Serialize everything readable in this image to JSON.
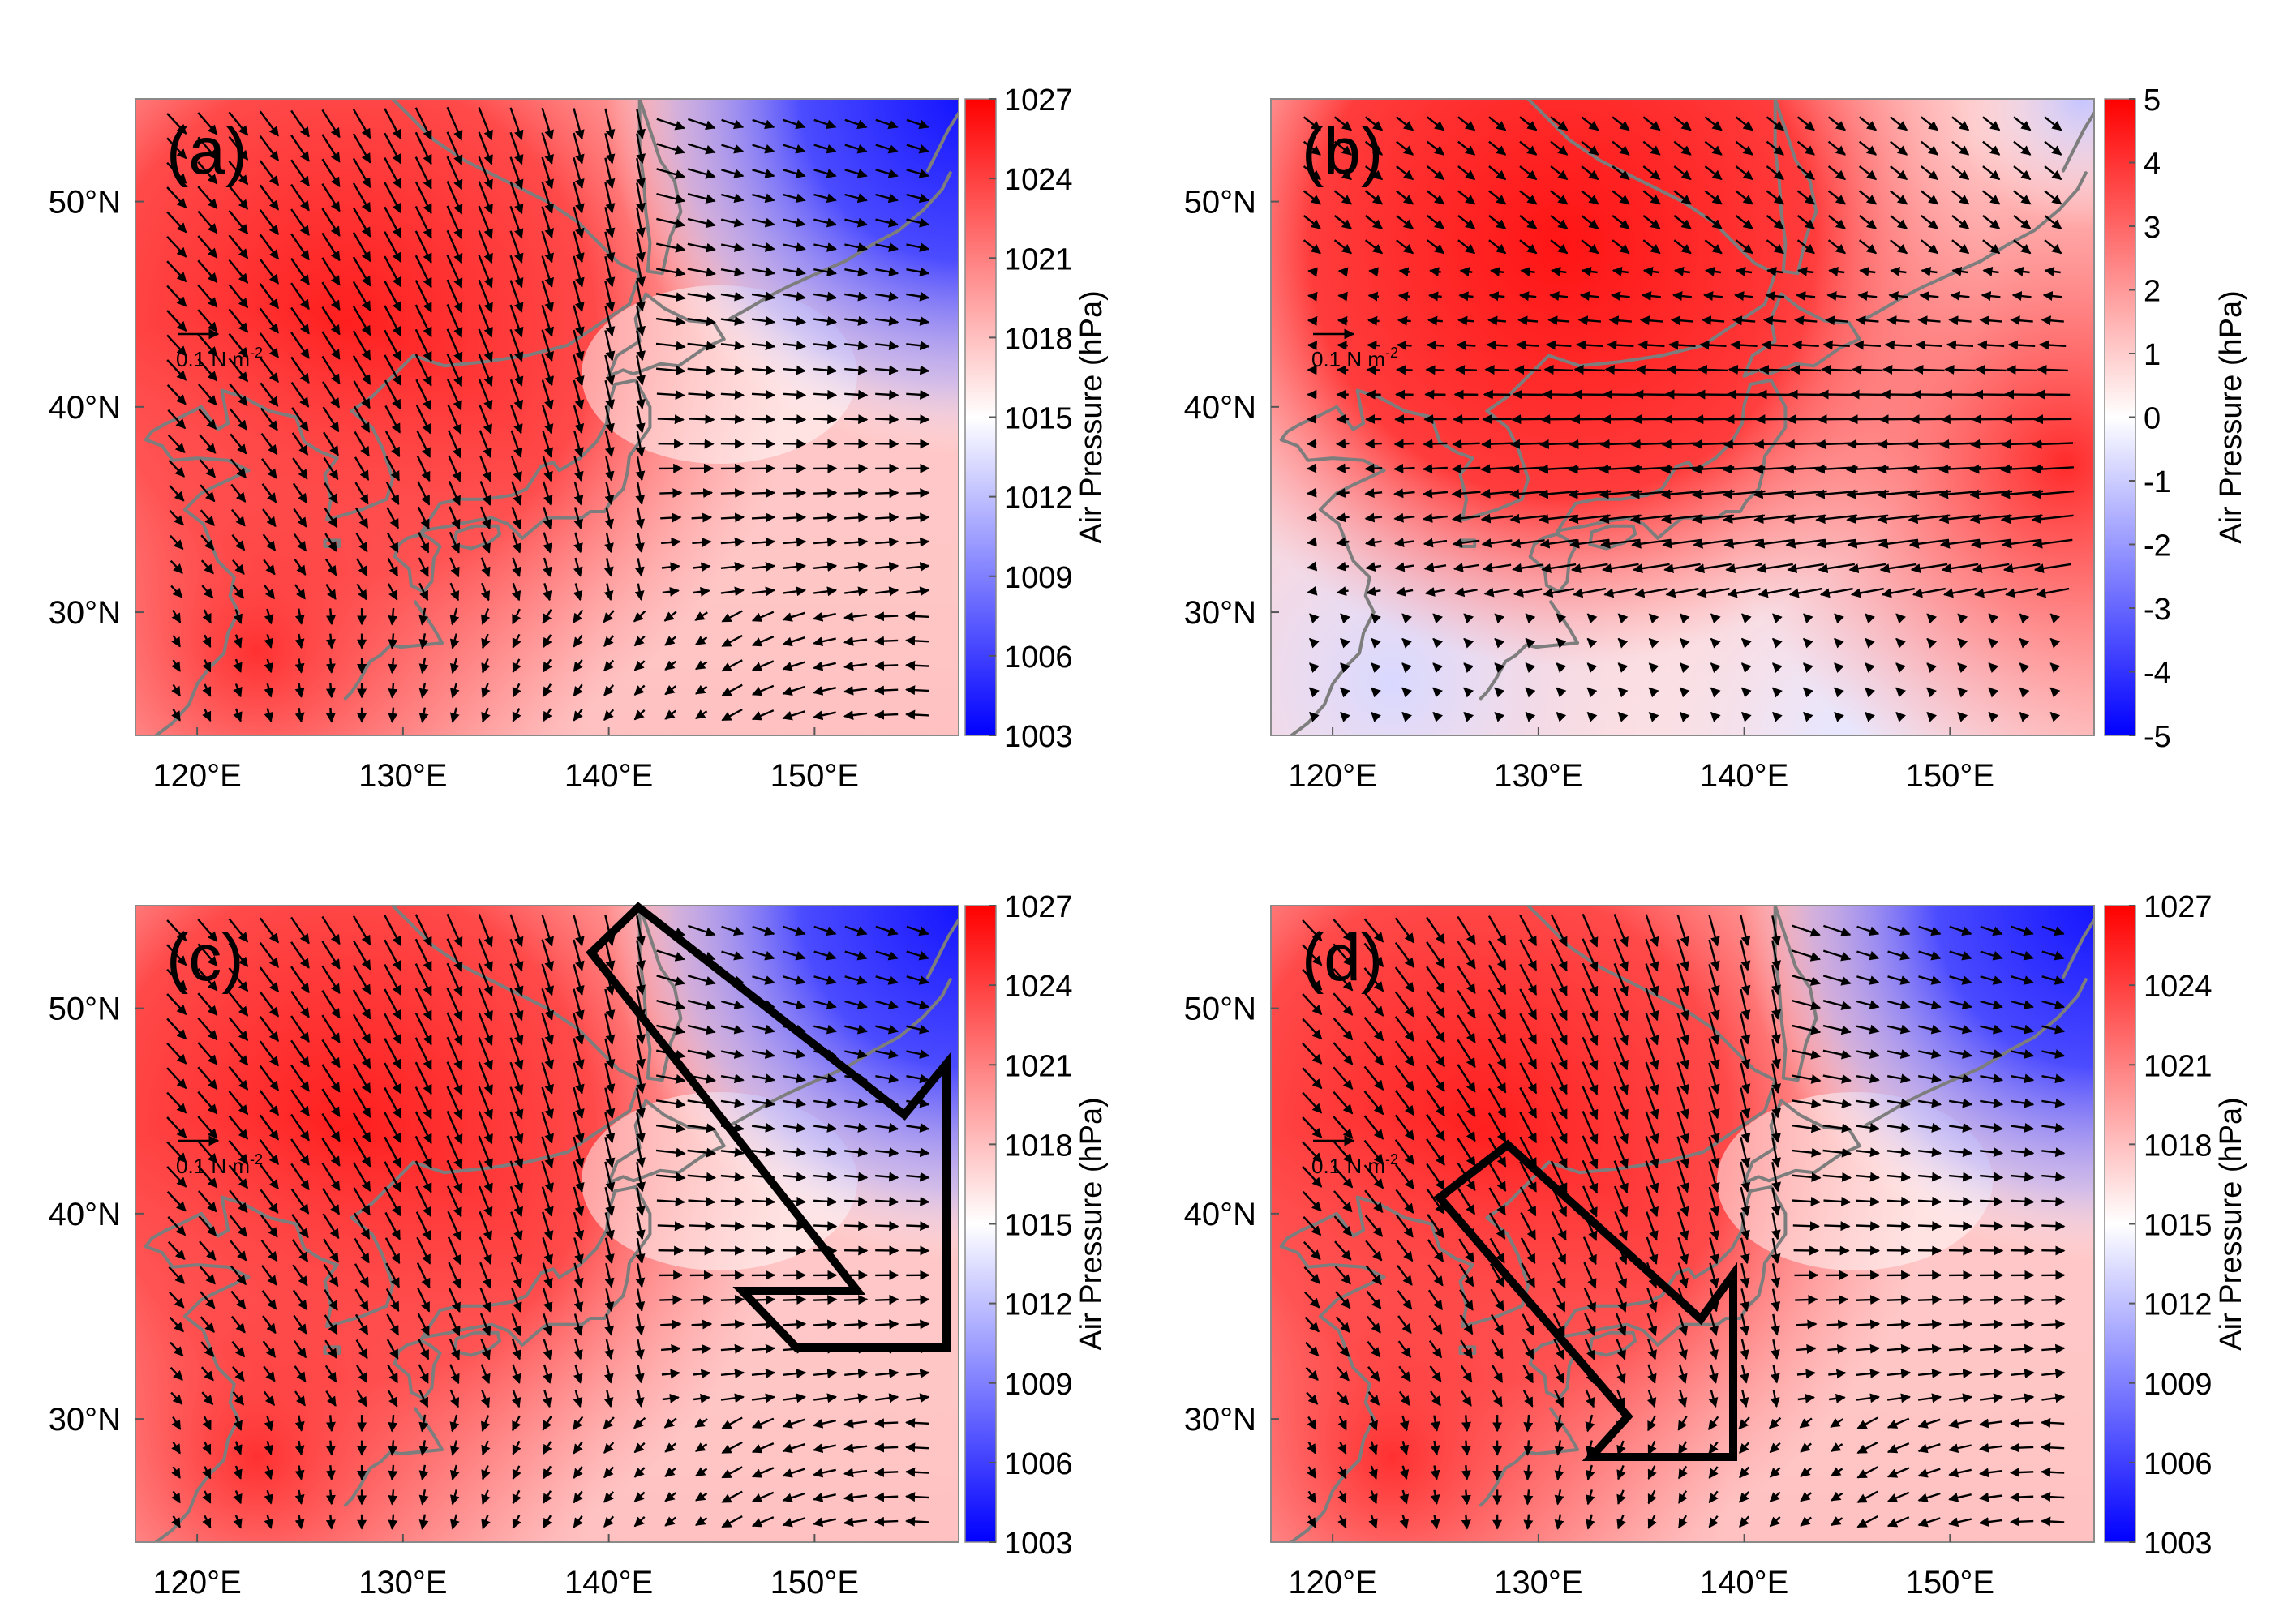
{
  "figure": {
    "panels": [
      {
        "id": "a",
        "label": "(a)",
        "kind": "absolute",
        "x_ticks": [
          "120°E",
          "130°E",
          "140°E",
          "150°E"
        ],
        "y_ticks": [
          "50°N",
          "40°N",
          "30°N"
        ],
        "colorbar": {
          "title": "Air Pressure (hPa)",
          "ticks": [
            "1027",
            "1024",
            "1021",
            "1018",
            "1015",
            "1012",
            "1009",
            "1006",
            "1003"
          ],
          "min": 1003,
          "max": 1027,
          "colors": {
            "high": "#ff0000",
            "mid": "#ffffff",
            "low": "#0000ff"
          }
        },
        "reference_vector": {
          "label": "0.1 N m",
          "exponent": "-2"
        },
        "highlight_arrow": null
      },
      {
        "id": "b",
        "label": "(b)",
        "kind": "anomaly",
        "x_ticks": [
          "120°E",
          "130°E",
          "140°E",
          "150°E"
        ],
        "y_ticks": [
          "50°N",
          "40°N",
          "30°N"
        ],
        "colorbar": {
          "title": "Air Pressure (hPa)",
          "ticks": [
            "5",
            "4",
            "3",
            "2",
            "1",
            "0",
            "-1",
            "-2",
            "-3",
            "-4",
            "-5"
          ],
          "min": -5,
          "max": 5,
          "colors": {
            "high": "#ff0000",
            "mid": "#ffffff",
            "low": "#0000ff"
          }
        },
        "reference_vector": {
          "label": "0.1 N m",
          "exponent": "-2"
        },
        "highlight_arrow": null
      },
      {
        "id": "c",
        "label": "(c)",
        "kind": "absolute",
        "x_ticks": [
          "120°E",
          "130°E",
          "140°E",
          "150°E"
        ],
        "y_ticks": [
          "50°N",
          "40°N",
          "30°N"
        ],
        "colorbar": {
          "title": "Air Pressure (hPa)",
          "ticks": [
            "1027",
            "1024",
            "1021",
            "1018",
            "1015",
            "1012",
            "1009",
            "1006",
            "1003"
          ],
          "min": 1003,
          "max": 1027,
          "colors": {
            "high": "#ff0000",
            "mid": "#ffffff",
            "low": "#0000ff"
          }
        },
        "reference_vector": {
          "label": "0.1 N m",
          "exponent": "-2"
        },
        "highlight_arrow": {
          "direction": "northwest-to-southeast"
        }
      },
      {
        "id": "d",
        "label": "(d)",
        "kind": "absolute",
        "x_ticks": [
          "120°E",
          "130°E",
          "140°E",
          "150°E"
        ],
        "y_ticks": [
          "50°N",
          "40°N",
          "30°N"
        ],
        "colorbar": {
          "title": "Air Pressure (hPa)",
          "ticks": [
            "1027",
            "1024",
            "1021",
            "1018",
            "1015",
            "1012",
            "1009",
            "1006",
            "1003"
          ],
          "min": 1003,
          "max": 1027,
          "colors": {
            "high": "#ff0000",
            "mid": "#ffffff",
            "low": "#0000ff"
          }
        },
        "reference_vector": {
          "label": "0.1 N m",
          "exponent": "-2"
        },
        "highlight_arrow": {
          "direction": "northwest-to-southeast"
        }
      }
    ]
  }
}
